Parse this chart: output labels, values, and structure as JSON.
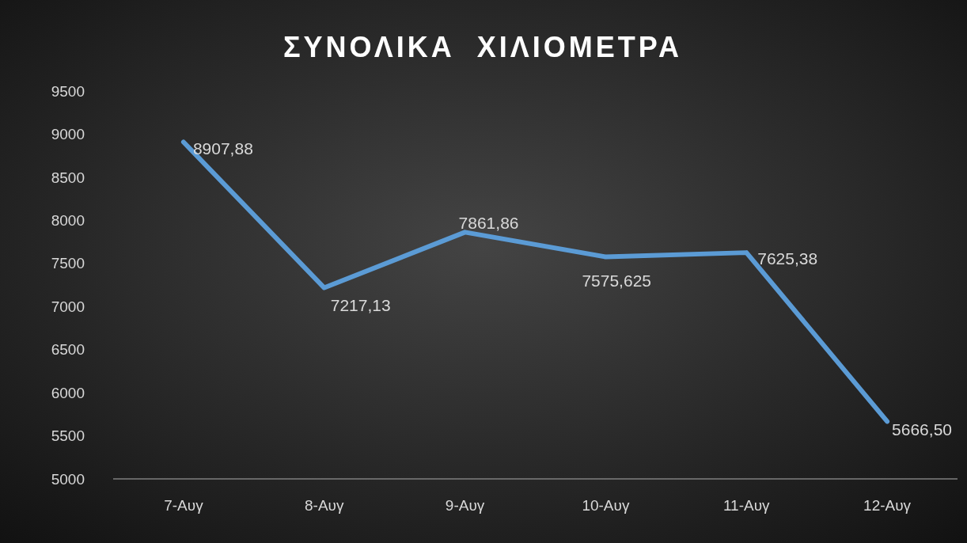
{
  "chart_data": {
    "type": "line",
    "title": "ΣΥΝΟΛΙΚΑ  ΧΙΛΙΟΜΕΤΡΑ",
    "categories": [
      "7-Αυγ",
      "8-Αυγ",
      "9-Αυγ",
      "10-Αυγ",
      "11-Αυγ",
      "12-Αυγ"
    ],
    "series": [
      {
        "color": "#5b9bd5",
        "values": [
          8907.88,
          7217.13,
          7861.86,
          7575.625,
          7625.38,
          5666.5
        ]
      }
    ],
    "value_labels": [
      "8907,88",
      "7217,13",
      "7861,86",
      "7575,625",
      "7625,38",
      "5666,50"
    ],
    "ylim": [
      5000,
      9500
    ],
    "yticks": [
      5000,
      5500,
      6000,
      6500,
      7000,
      7500,
      8000,
      8500,
      9000,
      9500
    ],
    "grid": false,
    "marker": "none",
    "line_style": "solid"
  }
}
